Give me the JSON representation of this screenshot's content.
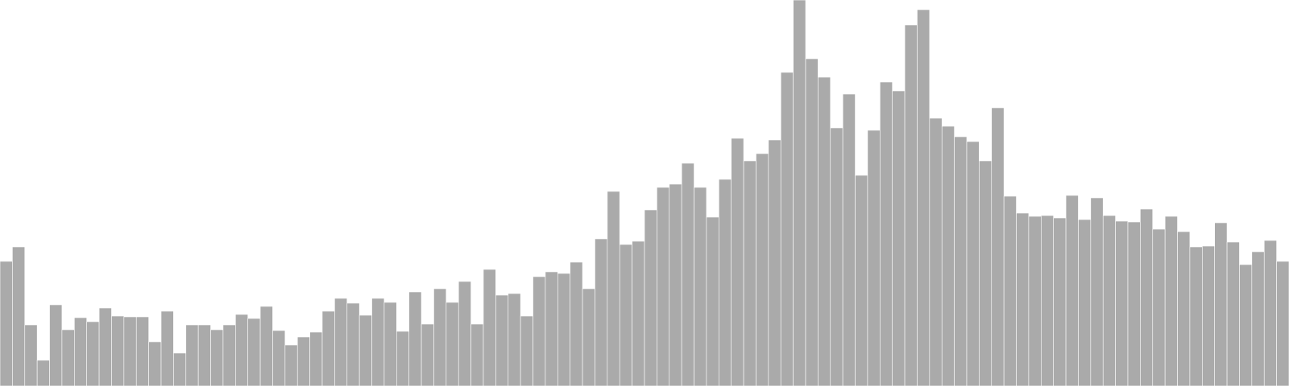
{
  "chart_data": {
    "type": "bar",
    "bar_color": "#aaaaaa",
    "background": "#ffffff",
    "grid": false,
    "legend": "none",
    "ylim": [
      0,
      480
    ],
    "values": [
      155,
      173,
      76,
      32,
      101,
      70,
      85,
      80,
      97,
      87,
      86,
      86,
      55,
      93,
      41,
      76,
      76,
      70,
      76,
      89,
      84,
      99,
      69,
      51,
      61,
      67,
      93,
      109,
      103,
      88,
      109,
      104,
      68,
      117,
      77,
      121,
      104,
      130,
      77,
      145,
      113,
      115,
      87,
      136,
      142,
      140,
      154,
      121,
      183,
      242,
      176,
      180,
      219,
      247,
      251,
      277,
      247,
      210,
      257,
      308,
      280,
      289,
      306,
      390,
      480,
      407,
      384,
      321,
      363,
      262,
      318,
      378,
      367,
      449,
      468,
      333,
      323,
      310,
      304,
      280,
      346,
      236,
      215,
      211,
      212,
      209,
      237,
      207,
      234,
      212,
      205,
      204,
      220,
      195,
      211,
      192,
      173,
      174,
      203,
      179,
      151,
      167,
      181,
      155
    ]
  }
}
